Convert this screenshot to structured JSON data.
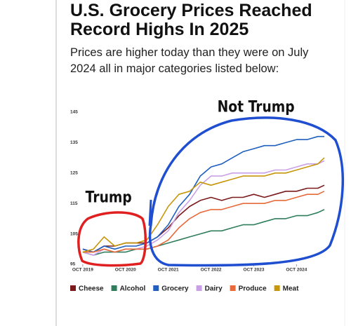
{
  "chart_data": {
    "type": "line",
    "title": "U.S. Grocery Prices Reached Record Highs In 2025",
    "subtitle": "Prices are higher today than they were on July 2024 all in major categories listed below:",
    "annotations": [
      "Trump",
      "Not Trump"
    ],
    "x": [
      2019.75,
      2020.0,
      2020.25,
      2020.5,
      2020.75,
      2021.0,
      2021.25,
      2021.5,
      2021.75,
      2022.0,
      2022.25,
      2022.5,
      2022.75,
      2023.0,
      2023.25,
      2023.5,
      2023.75,
      2024.0,
      2024.25,
      2024.5,
      2024.75,
      2025.0,
      2025.25,
      2025.4
    ],
    "xlim": [
      2019.67,
      2025.45
    ],
    "xticks": [
      {
        "value": 2019.75,
        "label": "OCT 2019"
      },
      {
        "value": 2020.75,
        "label": "OCT 2020"
      },
      {
        "value": 2021.75,
        "label": "OCT 2021"
      },
      {
        "value": 2022.75,
        "label": "OCT 2022"
      },
      {
        "value": 2023.75,
        "label": "OCT 2023"
      },
      {
        "value": 2024.75,
        "label": "OCT 2024"
      }
    ],
    "ylim": [
      95,
      145
    ],
    "yticks": [
      95,
      105,
      115,
      125,
      135,
      145
    ],
    "grid": false,
    "series": [
      {
        "name": "Cheese",
        "color": "#7a1a1a",
        "values": [
          100,
          99,
          101,
          101,
          102,
          102,
          102,
          104,
          107,
          111,
          114,
          116,
          117,
          116,
          117,
          117,
          118,
          117,
          118,
          119,
          119,
          120,
          120,
          121
        ]
      },
      {
        "name": "Alcohol",
        "color": "#2e7d5b",
        "values": [
          99,
          98,
          99,
          99,
          99,
          100,
          100,
          101,
          102,
          103,
          104,
          105,
          106,
          106,
          107,
          108,
          108,
          109,
          110,
          110,
          111,
          111,
          112,
          113
        ]
      },
      {
        "name": "Grocery",
        "color": "#1f5fbf",
        "values": [
          100,
          99,
          101,
          100,
          101,
          101,
          102,
          104,
          108,
          114,
          118,
          124,
          127,
          128,
          130,
          132,
          133,
          134,
          134,
          135,
          136,
          136,
          137,
          137
        ]
      },
      {
        "name": "Dairy",
        "color": "#c9a0e8",
        "values": [
          99,
          98,
          100,
          99,
          100,
          100,
          101,
          103,
          106,
          112,
          116,
          121,
          124,
          124,
          125,
          125,
          125,
          125,
          126,
          126,
          127,
          128,
          128,
          129
        ]
      },
      {
        "name": "Produce",
        "color": "#e86a3a",
        "values": [
          99,
          99,
          100,
          99,
          100,
          100,
          100,
          101,
          103,
          107,
          110,
          112,
          113,
          113,
          114,
          115,
          115,
          115,
          116,
          116,
          117,
          118,
          118,
          119
        ]
      },
      {
        "name": "Meat",
        "color": "#c8960a",
        "values": [
          99,
          100,
          104,
          101,
          102,
          102,
          103,
          108,
          114,
          118,
          119,
          122,
          121,
          122,
          123,
          124,
          124,
          124,
          125,
          125,
          126,
          127,
          128,
          130
        ]
      }
    ]
  }
}
